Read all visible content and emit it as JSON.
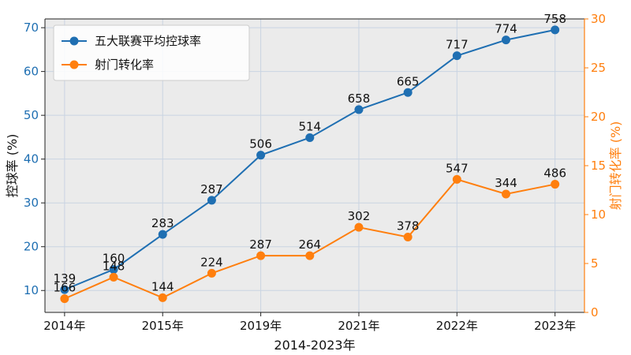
{
  "chart_data": {
    "type": "line",
    "xlabel": "2014-2023年",
    "ylabel_left": "控球率 (%)",
    "ylabel_right": "射门转化率 (%)",
    "ylim_left": [
      5,
      72
    ],
    "ylim_right": [
      0,
      30
    ],
    "left_ticks": [
      10,
      20,
      30,
      40,
      50,
      60,
      70
    ],
    "right_ticks": [
      0,
      5,
      10,
      15,
      20,
      25,
      30
    ],
    "x_positions": [
      0,
      1,
      2,
      3,
      4,
      5,
      6,
      7,
      8,
      9,
      10
    ],
    "x_tick_positions": [
      0,
      2,
      4,
      6,
      8,
      10
    ],
    "x_tick_labels": [
      "2014年",
      "2015年",
      "2019年",
      "2021年",
      "2022年",
      "2023年"
    ],
    "grid": true,
    "legend_position": "top-left",
    "colors": {
      "possession": "#1f6fb2",
      "conversion": "#ff7f0e",
      "background": "#ebebeb"
    },
    "series": [
      {
        "name": "五大联赛平均控球率",
        "axis": "left",
        "values": [
          10.2,
          14.8,
          22.8,
          30.6,
          40.9,
          44.9,
          51.3,
          55.2,
          63.6,
          67.2,
          69.5
        ],
        "labels": [
          "139",
          "160",
          "283",
          "287",
          "506",
          "514",
          "658",
          "665",
          "717",
          "774",
          "758"
        ]
      },
      {
        "name": "射门转化率",
        "axis": "right",
        "values": [
          1.4,
          3.6,
          1.5,
          4.0,
          5.8,
          5.8,
          8.7,
          7.7,
          13.6,
          12.1,
          13.1
        ],
        "labels": [
          "166",
          "148",
          "144",
          "224",
          "287",
          "264",
          "302",
          "378",
          "547",
          "344",
          "486"
        ]
      }
    ]
  }
}
